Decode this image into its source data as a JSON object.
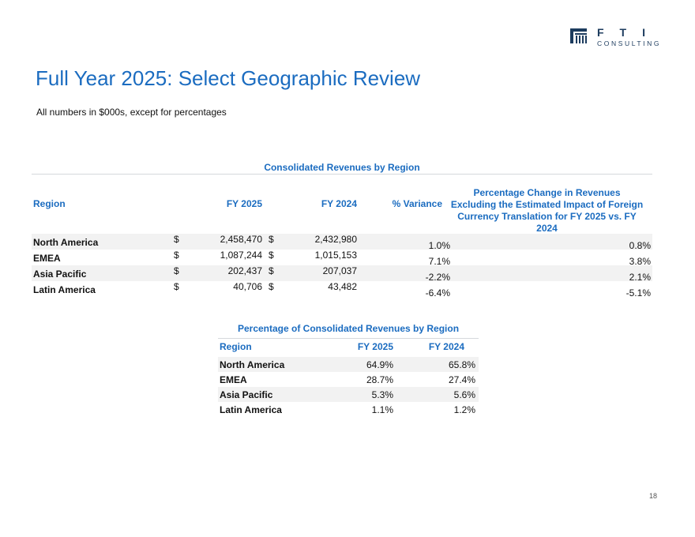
{
  "logo": {
    "text": "FTI CONSULTING",
    "colors": {
      "navy": "#1c3b5e"
    }
  },
  "title": "Full Year 2025: Select Geographic Review",
  "subtitle": "All numbers in $000s, except for percentages",
  "table1": {
    "title": "Consolidated Revenues by Region",
    "headers": [
      "Region",
      "FY 2025",
      "FY 2024",
      "% Variance",
      "Percentage Change in Revenues Excluding the Estimated Impact of Foreign Currency Translation for FY 2025 vs. FY 2024"
    ],
    "rows": [
      {
        "region": "North America",
        "cur": "$",
        "fy2025": "2,458,470",
        "cur2": "$",
        "fy2024": "2,432,980",
        "variance": "1.0%",
        "fx": "0.8%"
      },
      {
        "region": "EMEA",
        "cur": "$",
        "fy2025": "1,087,244",
        "cur2": "$",
        "fy2024": "1,015,153",
        "variance": "7.1%",
        "fx": "3.8%"
      },
      {
        "region": "Asia Pacific",
        "cur": "$",
        "fy2025": "202,437",
        "cur2": "$",
        "fy2024": "207,037",
        "variance": "-2.2%",
        "fx": "2.1%"
      },
      {
        "region": "Latin America",
        "cur": "$",
        "fy2025": "40,706",
        "cur2": "$",
        "fy2024": "43,482",
        "variance": "-6.4%",
        "fx": "-5.1%"
      }
    ]
  },
  "table2": {
    "title": "Percentage of Consolidated Revenues by Region",
    "headers": [
      "Region",
      "FY 2025",
      "FY 2024"
    ],
    "rows": [
      {
        "region": "North America",
        "fy2025": "64.9%",
        "fy2024": "65.8%"
      },
      {
        "region": "EMEA",
        "fy2025": "28.7%",
        "fy2024": "27.4%"
      },
      {
        "region": "Asia Pacific",
        "fy2025": "5.3%",
        "fy2024": "5.6%"
      },
      {
        "region": "Latin America",
        "fy2025": "1.1%",
        "fy2024": "1.2%"
      }
    ]
  },
  "accent": "#1b6cc0",
  "page_number": "18"
}
